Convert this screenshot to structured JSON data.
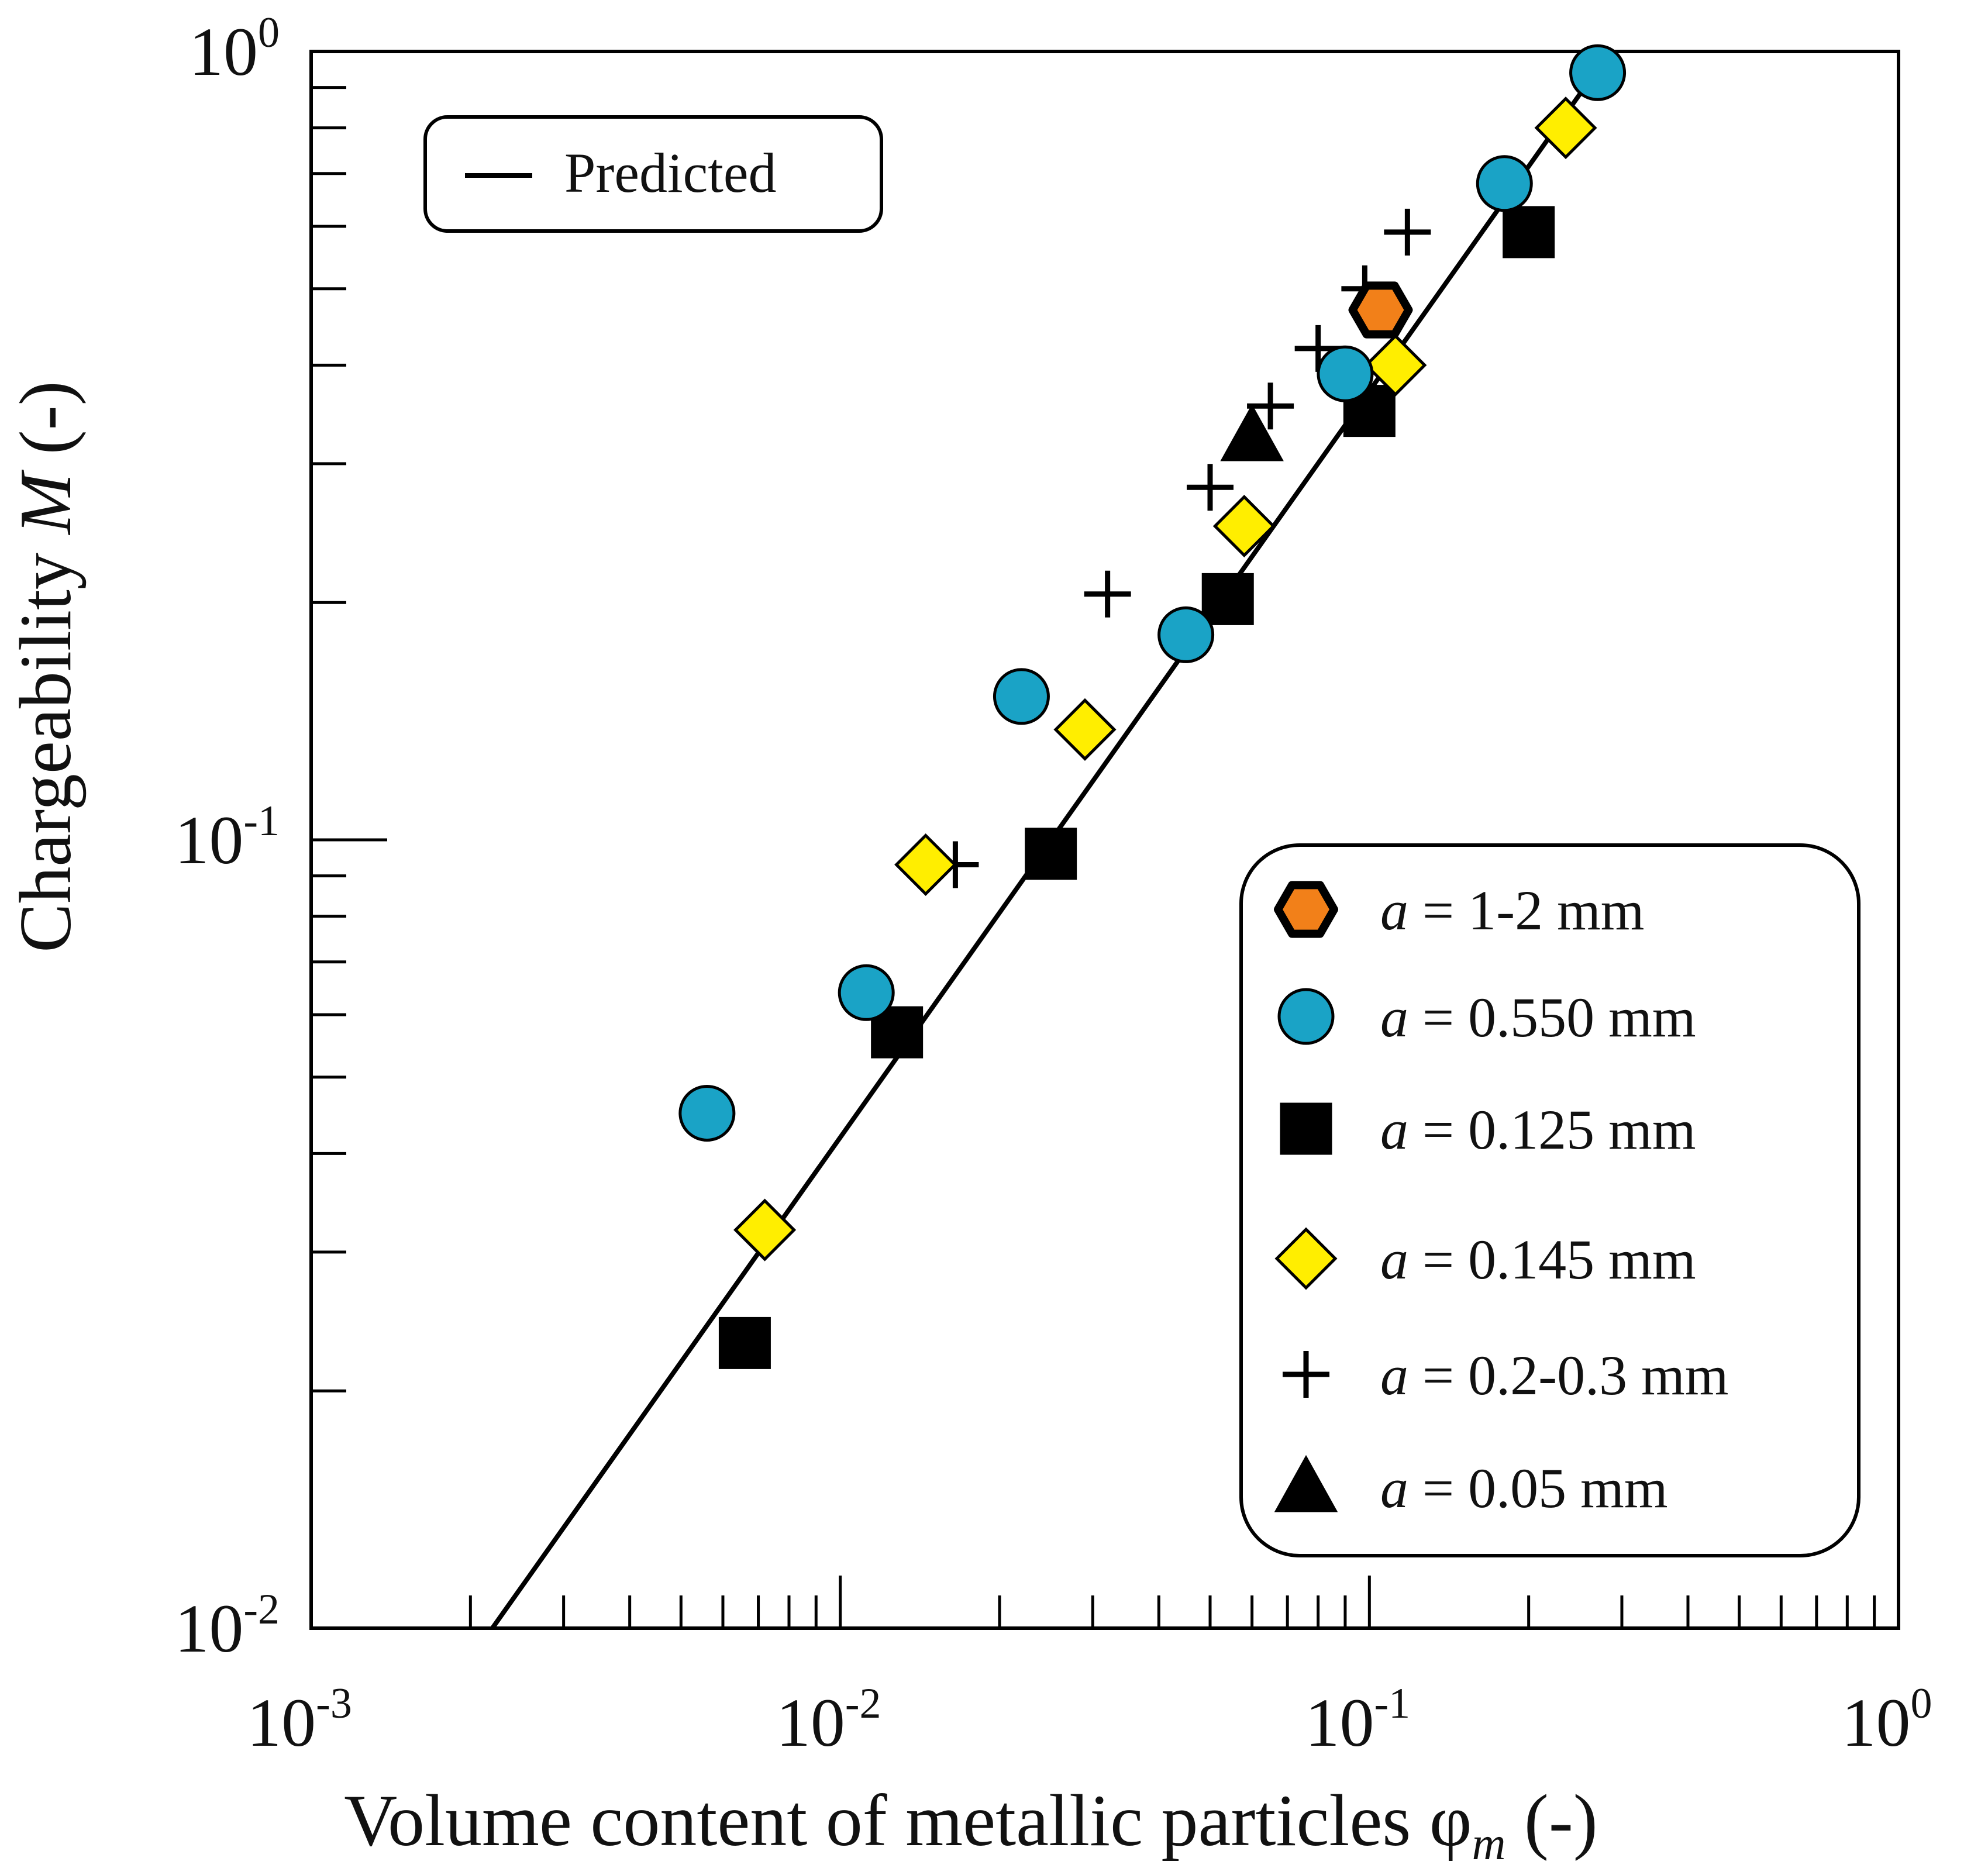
{
  "chart_data": {
    "type": "scatter",
    "xscale": "log",
    "yscale": "log",
    "xlim": [
      0.001,
      1
    ],
    "ylim": [
      0.01,
      1
    ],
    "xlabel": {
      "main": "Volume content of metallic particles  φ",
      "sub": "m",
      "suffix": "  (-)"
    },
    "ylabel": {
      "main": "Chargeability ",
      "italic": "M",
      "suffix": " (-)"
    },
    "xticks": [
      {
        "base": "10",
        "exp": "-3",
        "value": 0.001
      },
      {
        "base": "10",
        "exp": "-2",
        "value": 0.01
      },
      {
        "base": "10",
        "exp": "-1",
        "value": 0.1
      },
      {
        "base": "10",
        "exp": "0",
        "value": 1
      }
    ],
    "yticks": [
      {
        "base": "10",
        "exp": "-2",
        "value": 0.01
      },
      {
        "base": "10",
        "exp": "-1",
        "value": 0.1
      },
      {
        "base": "10",
        "exp": "0",
        "value": 1
      }
    ],
    "line": {
      "name": "Predicted",
      "points": [
        [
          0.0022,
          0.01
        ],
        [
          0.27,
          0.95
        ]
      ]
    },
    "series": [
      {
        "name": "a = 1-2 mm",
        "var": "a",
        "label": " = 1-2 mm",
        "marker": "hexagon",
        "color": "#f28019",
        "edge": "#000000",
        "points": [
          [
            0.105,
            0.47
          ]
        ]
      },
      {
        "name": "a = 0.550 mm",
        "var": "a",
        "label": " = 0.550 mm",
        "marker": "circle",
        "color": "#1aa3c6",
        "edge": "#000000",
        "points": [
          [
            0.0056,
            0.045
          ],
          [
            0.0112,
            0.064
          ],
          [
            0.022,
            0.152
          ],
          [
            0.045,
            0.182
          ],
          [
            0.09,
            0.39
          ],
          [
            0.18,
            0.68
          ],
          [
            0.27,
            0.94
          ]
        ]
      },
      {
        "name": "a = 0.125 mm",
        "var": "a",
        "label": " = 0.125 mm",
        "marker": "square",
        "color": "#000000",
        "edge": "#000000",
        "points": [
          [
            0.0066,
            0.023
          ],
          [
            0.0128,
            0.057
          ],
          [
            0.025,
            0.096
          ],
          [
            0.054,
            0.202
          ],
          [
            0.1,
            0.35
          ],
          [
            0.2,
            0.59
          ]
        ]
      },
      {
        "name": "a = 0.145 mm",
        "var": "a",
        "label": " = 0.145 mm",
        "marker": "diamond",
        "color": "#ffee00",
        "edge": "#000000",
        "points": [
          [
            0.0072,
            0.032
          ],
          [
            0.0145,
            0.093
          ],
          [
            0.029,
            0.138
          ],
          [
            0.058,
            0.25
          ],
          [
            0.112,
            0.4
          ],
          [
            0.235,
            0.8
          ]
        ]
      },
      {
        "name": "a = 0.2-0.3 mm",
        "var": "a",
        "label": " = 0.2-0.3 mm",
        "marker": "plus",
        "color": "#000000",
        "edge": "#000000",
        "points": [
          [
            0.0165,
            0.093
          ],
          [
            0.032,
            0.205
          ],
          [
            0.05,
            0.28
          ],
          [
            0.065,
            0.355
          ],
          [
            0.08,
            0.42
          ],
          [
            0.098,
            0.5
          ],
          [
            0.118,
            0.59
          ]
        ]
      },
      {
        "name": "a = 0.05 mm",
        "var": "a",
        "label": " = 0.05 mm",
        "marker": "triangle",
        "color": "#000000",
        "edge": "#000000",
        "points": [
          [
            0.06,
            0.325
          ]
        ]
      }
    ]
  }
}
